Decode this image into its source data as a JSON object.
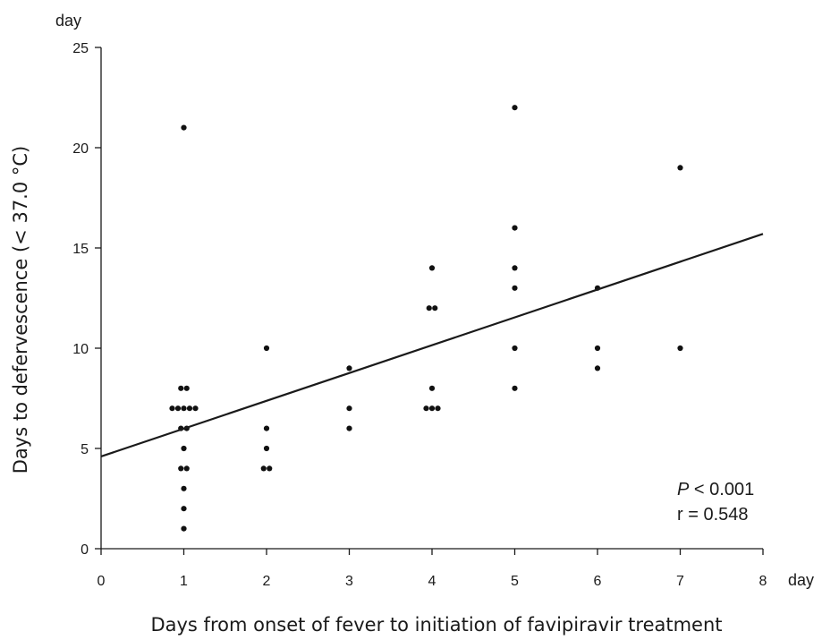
{
  "chart_data": {
    "type": "scatter",
    "title": "",
    "xlabel": "Days from onset of fever to initiation of favipiravir treatment",
    "ylabel": "Days to defervescence (< 37.0 °C)",
    "x_unit": "day",
    "y_unit": "day",
    "xlim": [
      0,
      8
    ],
    "ylim": [
      0,
      25
    ],
    "x_ticks": [
      "0",
      "1",
      "2",
      "3",
      "4",
      "5",
      "6",
      "7",
      "8"
    ],
    "y_ticks": [
      "0",
      "5",
      "10",
      "15",
      "20",
      "25"
    ],
    "grid": false,
    "series": [
      {
        "points": [
          {
            "x": 1,
            "y": 21
          },
          {
            "x": 1,
            "y": 8
          },
          {
            "x": 1,
            "y": 8
          },
          {
            "x": 1,
            "y": 7
          },
          {
            "x": 1,
            "y": 7
          },
          {
            "x": 1,
            "y": 7
          },
          {
            "x": 1,
            "y": 7
          },
          {
            "x": 1,
            "y": 7
          },
          {
            "x": 1,
            "y": 6
          },
          {
            "x": 1,
            "y": 6
          },
          {
            "x": 1,
            "y": 5
          },
          {
            "x": 1,
            "y": 4
          },
          {
            "x": 1,
            "y": 4
          },
          {
            "x": 1,
            "y": 3
          },
          {
            "x": 1,
            "y": 2
          },
          {
            "x": 1,
            "y": 1
          },
          {
            "x": 2,
            "y": 10
          },
          {
            "x": 2,
            "y": 6
          },
          {
            "x": 2,
            "y": 5
          },
          {
            "x": 2,
            "y": 4
          },
          {
            "x": 2,
            "y": 4
          },
          {
            "x": 3,
            "y": 9
          },
          {
            "x": 3,
            "y": 7
          },
          {
            "x": 3,
            "y": 6
          },
          {
            "x": 4,
            "y": 14
          },
          {
            "x": 4,
            "y": 12
          },
          {
            "x": 4,
            "y": 12
          },
          {
            "x": 4,
            "y": 8
          },
          {
            "x": 4,
            "y": 7
          },
          {
            "x": 4,
            "y": 7
          },
          {
            "x": 4,
            "y": 7
          },
          {
            "x": 5,
            "y": 22
          },
          {
            "x": 5,
            "y": 16
          },
          {
            "x": 5,
            "y": 14
          },
          {
            "x": 5,
            "y": 13
          },
          {
            "x": 5,
            "y": 10
          },
          {
            "x": 5,
            "y": 8
          },
          {
            "x": 6,
            "y": 13
          },
          {
            "x": 6,
            "y": 10
          },
          {
            "x": 6,
            "y": 9
          },
          {
            "x": 7,
            "y": 19
          },
          {
            "x": 7,
            "y": 10
          }
        ]
      }
    ],
    "regression_line": {
      "x": [
        0,
        8
      ],
      "y": [
        4.6,
        15.7
      ]
    },
    "annotations": {
      "p_symbol": "P",
      "p_text": " < 0.001",
      "r_text": "r = 0.548"
    }
  }
}
